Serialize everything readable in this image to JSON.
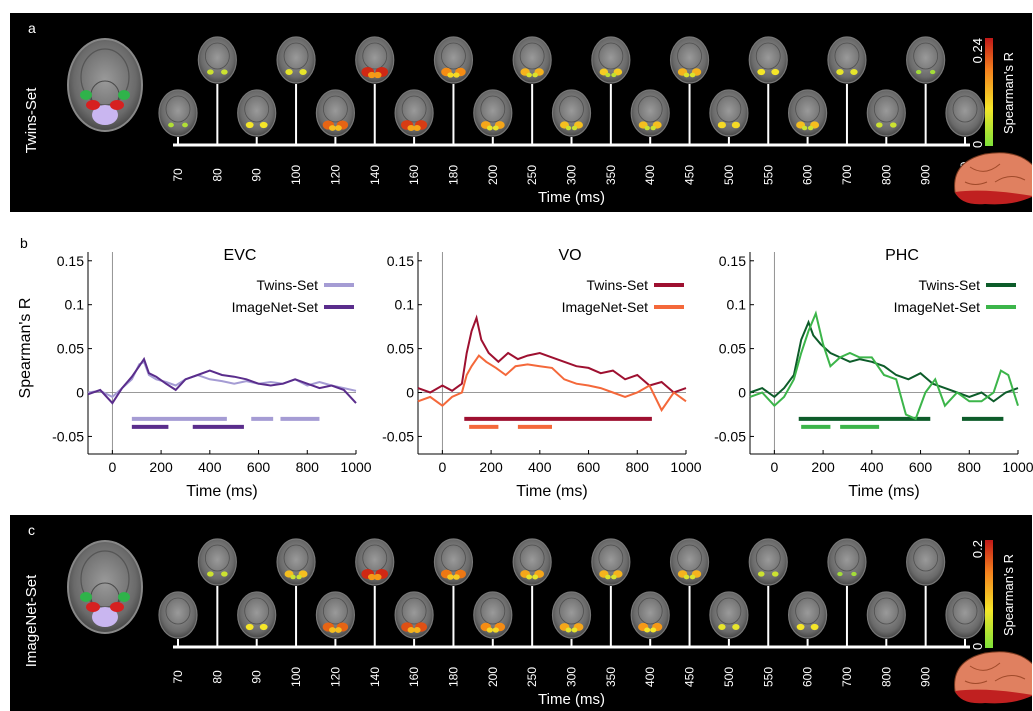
{
  "panels": {
    "a": {
      "letter": "a",
      "side_label": "Twins-Set",
      "cbar_max": "0.24",
      "cbar_min": "0",
      "cbar_label": "Spearman's R"
    },
    "b": {
      "letter": "b"
    },
    "c": {
      "letter": "c",
      "side_label": "ImageNet-Set",
      "cbar_max": "0.2",
      "cbar_min": "0",
      "cbar_label": "Spearman's R"
    }
  },
  "timeline": {
    "ticks": [
      "70",
      "80",
      "90",
      "100",
      "120",
      "140",
      "160",
      "180",
      "200",
      "250",
      "300",
      "350",
      "400",
      "450",
      "500",
      "550",
      "600",
      "700",
      "800",
      "900",
      "1000"
    ],
    "xlabel": "Time (ms)"
  },
  "brain_intensity": {
    "a": [
      0.1,
      0.2,
      0.35,
      0.3,
      0.8,
      0.95,
      0.9,
      0.7,
      0.6,
      0.55,
      0.5,
      0.45,
      0.5,
      0.55,
      0.4,
      0.35,
      0.5,
      0.3,
      0.2,
      0.05,
      0.0
    ],
    "c": [
      0.0,
      0.2,
      0.35,
      0.5,
      0.8,
      0.95,
      0.85,
      0.75,
      0.7,
      0.6,
      0.6,
      0.55,
      0.65,
      0.55,
      0.3,
      0.2,
      0.35,
      0.05,
      0.0,
      0.0,
      0.0
    ]
  },
  "colors": {
    "panel_bg": "#000000",
    "roi_green": "#2fb34a",
    "roi_red": "#d62020",
    "roi_lilac": "#c9b6f0"
  },
  "chart_data": [
    {
      "type": "line",
      "title": "EVC",
      "xlabel": "Time (ms)",
      "ylabel": "Spearman's R",
      "xlim": [
        -100,
        1000
      ],
      "ylim": [
        -0.07,
        0.16
      ],
      "xticks": [
        "0",
        "200",
        "400",
        "600",
        "800",
        "1000"
      ],
      "yticks": [
        "-0.05",
        "0",
        "0.05",
        "0.1",
        "0.15"
      ],
      "series": [
        {
          "name": "Twins-Set",
          "color": "#a59cd4",
          "x": [
            -100,
            -50,
            0,
            40,
            80,
            110,
            130,
            150,
            180,
            220,
            260,
            300,
            350,
            400,
            450,
            500,
            550,
            600,
            650,
            700,
            750,
            800,
            850,
            900,
            950,
            1000
          ],
          "y": [
            0.0,
            0.002,
            -0.005,
            0.005,
            0.015,
            0.032,
            0.035,
            0.02,
            0.015,
            0.012,
            0.008,
            0.015,
            0.02,
            0.015,
            0.013,
            0.01,
            0.013,
            0.01,
            0.012,
            0.01,
            0.015,
            0.008,
            0.012,
            0.008,
            0.005,
            0.002
          ],
          "sig_bar": [
            [
              80,
              470
            ],
            [
              570,
              660
            ],
            [
              690,
              850
            ]
          ]
        },
        {
          "name": "ImageNet-Set",
          "color": "#5a2d8c",
          "x": [
            -100,
            -50,
            0,
            40,
            80,
            110,
            130,
            150,
            180,
            220,
            260,
            300,
            350,
            400,
            450,
            500,
            550,
            600,
            650,
            700,
            750,
            800,
            850,
            900,
            950,
            1000
          ],
          "y": [
            -0.002,
            0.003,
            -0.012,
            0.005,
            0.018,
            0.03,
            0.038,
            0.022,
            0.018,
            0.01,
            0.003,
            0.015,
            0.02,
            0.025,
            0.02,
            0.018,
            0.015,
            0.01,
            0.008,
            0.01,
            0.015,
            0.01,
            0.005,
            0.008,
            0.003,
            -0.012
          ],
          "sig_bar": [
            [
              80,
              230
            ],
            [
              330,
              540
            ]
          ]
        }
      ]
    },
    {
      "type": "line",
      "title": "VO",
      "xlabel": "Time (ms)",
      "ylabel": "",
      "xlim": [
        -100,
        1000
      ],
      "ylim": [
        -0.07,
        0.16
      ],
      "xticks": [
        "0",
        "200",
        "400",
        "600",
        "800",
        "1000"
      ],
      "yticks": [
        "-0.05",
        "0",
        "0.05",
        "0.1",
        "0.15"
      ],
      "series": [
        {
          "name": "Twins-Set",
          "color": "#9e1030",
          "x": [
            -100,
            -50,
            0,
            40,
            80,
            100,
            120,
            140,
            160,
            190,
            230,
            270,
            310,
            350,
            400,
            450,
            500,
            550,
            600,
            650,
            700,
            750,
            800,
            850,
            900,
            950,
            1000
          ],
          "y": [
            0.005,
            0.0,
            0.008,
            0.002,
            0.01,
            0.045,
            0.07,
            0.085,
            0.06,
            0.045,
            0.035,
            0.045,
            0.038,
            0.042,
            0.045,
            0.04,
            0.035,
            0.03,
            0.028,
            0.022,
            0.025,
            0.015,
            0.02,
            0.008,
            0.012,
            0.0,
            0.005
          ],
          "sig_bar": [
            [
              90,
              860
            ]
          ]
        },
        {
          "name": "ImageNet-Set",
          "color": "#f4683a",
          "x": [
            -100,
            -50,
            0,
            40,
            80,
            100,
            120,
            150,
            180,
            220,
            260,
            300,
            350,
            400,
            450,
            500,
            550,
            600,
            650,
            700,
            750,
            800,
            850,
            900,
            950,
            1000
          ],
          "y": [
            -0.01,
            -0.005,
            -0.015,
            -0.005,
            0.0,
            0.02,
            0.03,
            0.042,
            0.035,
            0.028,
            0.02,
            0.03,
            0.032,
            0.03,
            0.028,
            0.015,
            0.01,
            0.008,
            0.005,
            0.0,
            -0.005,
            0.0,
            0.008,
            -0.02,
            0.0,
            -0.01
          ],
          "sig_bar": [
            [
              110,
              230
            ],
            [
              310,
              450
            ]
          ]
        }
      ]
    },
    {
      "type": "line",
      "title": "PHC",
      "xlabel": "Time (ms)",
      "ylabel": "",
      "xlim": [
        -100,
        1000
      ],
      "ylim": [
        -0.07,
        0.16
      ],
      "xticks": [
        "0",
        "200",
        "400",
        "600",
        "800",
        "1000"
      ],
      "yticks": [
        "-0.05",
        "0",
        "0.05",
        "0.1",
        "0.15"
      ],
      "series": [
        {
          "name": "Twins-Set",
          "color": "#0d5c2a",
          "x": [
            -100,
            -50,
            0,
            40,
            80,
            110,
            140,
            160,
            190,
            230,
            270,
            310,
            350,
            400,
            450,
            500,
            550,
            600,
            650,
            700,
            750,
            800,
            850,
            900,
            950,
            1000
          ],
          "y": [
            0.0,
            0.005,
            -0.005,
            0.005,
            0.02,
            0.06,
            0.08,
            0.065,
            0.055,
            0.045,
            0.04,
            0.035,
            0.038,
            0.035,
            0.03,
            0.02,
            0.015,
            0.022,
            0.01,
            0.005,
            0.0,
            -0.005,
            0.0,
            -0.01,
            0.0,
            0.005
          ],
          "sig_bar": [
            [
              100,
              640
            ],
            [
              770,
              940
            ]
          ]
        },
        {
          "name": "ImageNet-Set",
          "color": "#3cb54a",
          "x": [
            -100,
            -50,
            0,
            40,
            80,
            110,
            140,
            170,
            200,
            230,
            270,
            310,
            350,
            400,
            450,
            500,
            540,
            580,
            620,
            660,
            700,
            750,
            800,
            850,
            900,
            930,
            960,
            1000
          ],
          "y": [
            -0.005,
            0.0,
            -0.015,
            -0.005,
            0.015,
            0.045,
            0.07,
            0.09,
            0.055,
            0.03,
            0.04,
            0.045,
            0.04,
            0.04,
            0.02,
            0.015,
            -0.025,
            -0.03,
            0.0,
            0.015,
            -0.015,
            0.0,
            -0.01,
            -0.01,
            0.0,
            0.025,
            0.02,
            -0.015
          ],
          "sig_bar": [
            [
              110,
              230
            ],
            [
              270,
              430
            ]
          ]
        }
      ]
    }
  ]
}
